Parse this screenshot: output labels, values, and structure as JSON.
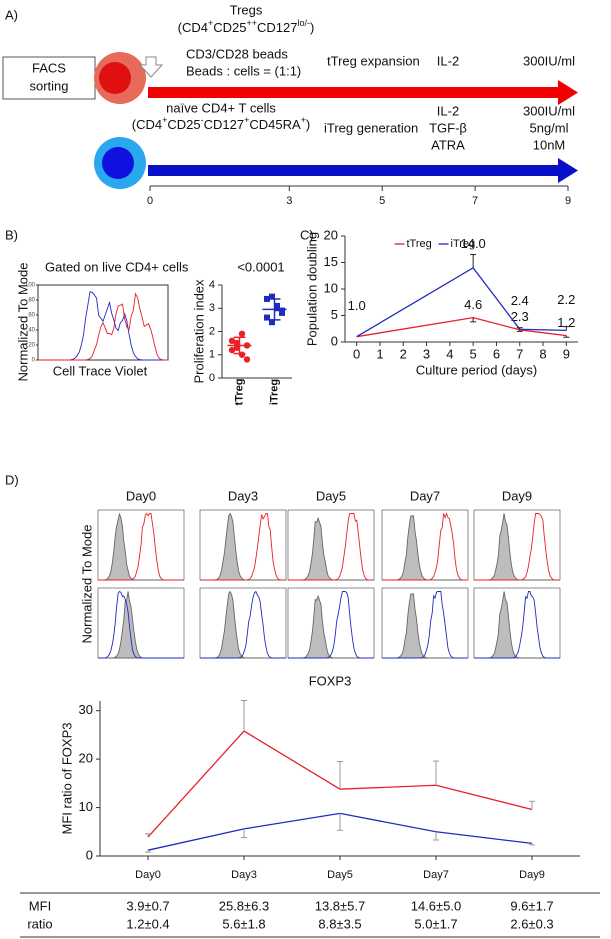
{
  "panel_a": {
    "label": "A)",
    "tregs": "Tregs",
    "tregs_markers": [
      "(CD4",
      "+",
      "CD25",
      "++",
      "CD127",
      "lo/-",
      ")"
    ],
    "facs": [
      "FACS",
      "sorting"
    ],
    "beads": "CD3/CD28 beads",
    "ratio": "Beads : cells = (1:1)",
    "t_expansion": "tTreg expansion",
    "t_reagents": [
      "IL-2"
    ],
    "t_doses": [
      "300IU/ml"
    ],
    "naive": "naïve CD4+ T cells",
    "naive_markers": [
      "(CD4",
      "+",
      "CD25",
      "-",
      "CD127",
      "+",
      "CD45RA",
      "+",
      ")"
    ],
    "i_generation": "iTreg generation",
    "i_reagents": [
      "IL-2",
      "TGF-β",
      "ATRA"
    ],
    "i_doses": [
      "300IU/ml",
      "5ng/ml",
      "10nM"
    ],
    "timeline_lim": [
      0,
      9
    ],
    "timeline_ticks": [
      0,
      3,
      5,
      7,
      9
    ]
  },
  "panel_b": {
    "label": "B)",
    "gate": "Gated on live CD4+ cells",
    "hist_ylabel": "Normalized To Mode",
    "hist_xlabel": "Cell Trace Violet",
    "hist_yticks": [
      0,
      20,
      40,
      60,
      80,
      100
    ]
  },
  "panel_c": {
    "label": "C)"
  },
  "panel_d": {
    "label": "D)",
    "hist_ylabel": "Normalized To Mode",
    "hist_xlabel": "FOXP3"
  },
  "chart_data": [
    {
      "type": "strip",
      "ylabel": "Proliferation index",
      "annotation": "<0.0001",
      "categories": [
        "tTreg",
        "iTreg"
      ],
      "colors": [
        "#e8202a",
        "#1f2bbf"
      ],
      "points": [
        [
          1.6,
          1.3,
          1.0,
          0.8,
          1.2,
          1.5,
          1.9,
          1.4
        ],
        [
          3.4,
          3.5,
          3.1,
          2.9,
          2.6,
          2.4,
          3.0,
          2.8
        ]
      ],
      "means": [
        1.4,
        2.95
      ],
      "sds": [
        0.35,
        0.45
      ],
      "ylim": [
        0,
        4
      ],
      "yticks": [
        0,
        1,
        2,
        3,
        4
      ]
    },
    {
      "type": "line",
      "xlabel": "Culture period (days)",
      "ylabel": "Population doubling",
      "legend": "upper center",
      "x": [
        0,
        5,
        7,
        9
      ],
      "xlim": [
        -0.5,
        9.5
      ],
      "xticks": [
        0,
        1,
        2,
        3,
        4,
        5,
        6,
        7,
        8,
        9
      ],
      "ylim": [
        0,
        20
      ],
      "yticks": [
        0,
        5,
        10,
        15,
        20
      ],
      "series": [
        {
          "name": "tTreg",
          "color": "#e8202a",
          "values": [
            1.0,
            4.6,
            2.3,
            1.2
          ],
          "value_labels": [
            "1.0",
            "4.6",
            "2.3",
            "1.2"
          ],
          "errors": [
            null,
            0.8,
            0.3,
            0.3
          ],
          "error_side": "down"
        },
        {
          "name": "iTreg",
          "color": "#1f2bbf",
          "values": [
            1.0,
            14.0,
            2.4,
            2.2
          ],
          "value_labels": [
            null,
            "14.0",
            "2.4",
            "2.2"
          ],
          "errors": [
            null,
            2.5,
            0.3,
            0.7
          ],
          "error_side": "up"
        }
      ]
    },
    {
      "type": "line",
      "ylabel": "MFI ratio of FOXP3",
      "categories": [
        "Day0",
        "Day3",
        "Day5",
        "Day7",
        "Day9"
      ],
      "ylim": [
        0,
        32
      ],
      "yticks": [
        0,
        10,
        20,
        30
      ],
      "series": [
        {
          "color": "#e8202a",
          "values": [
            3.9,
            25.8,
            13.8,
            14.6,
            9.6
          ],
          "errors": [
            0.7,
            6.3,
            5.7,
            5.0,
            1.7
          ],
          "error_side": "up"
        },
        {
          "color": "#1f2bbf",
          "values": [
            1.2,
            5.6,
            8.8,
            5.0,
            2.6
          ],
          "errors": [
            0.4,
            1.8,
            3.5,
            1.7,
            0.3
          ],
          "error_side": "down"
        }
      ]
    }
  ],
  "table": {
    "row_label": [
      "MFI",
      "ratio"
    ],
    "rows": [
      {
        "color": "#e8202a",
        "cells": [
          "3.9±0.7",
          "25.8±6.3",
          "13.8±5.7",
          "14.6±5.0",
          "9.6±1.7"
        ]
      },
      {
        "color": "#1f2bbf",
        "cells": [
          "1.2±0.4",
          "5.6±1.8",
          "8.8±3.5",
          "5.0±1.7",
          "2.6±0.3"
        ]
      }
    ]
  }
}
